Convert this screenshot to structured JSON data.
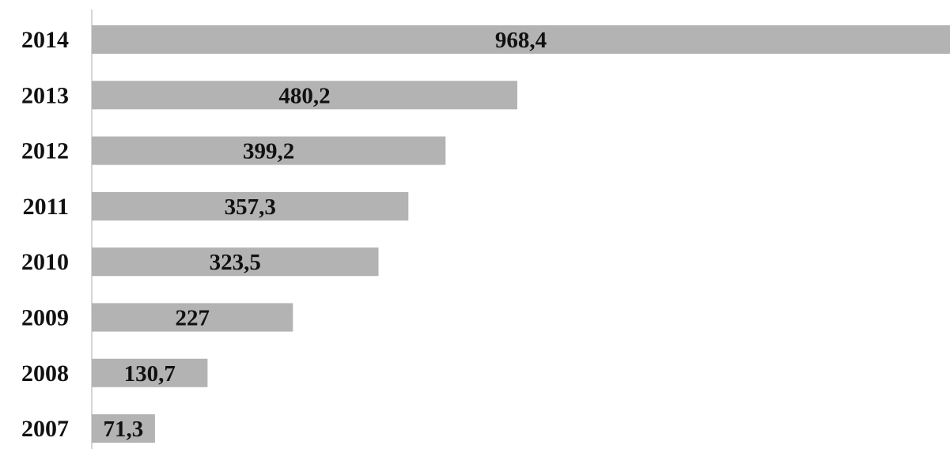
{
  "chart_data": {
    "type": "bar",
    "orientation": "horizontal",
    "categories": [
      "2014",
      "2013",
      "2012",
      "2011",
      "2010",
      "2009",
      "2008",
      "2007"
    ],
    "values": [
      968.4,
      480.2,
      399.2,
      357.3,
      323.5,
      227,
      130.7,
      71.3
    ],
    "value_labels": [
      "968,4",
      "480,2",
      "399,2",
      "357,3",
      "323,5",
      "227",
      "130,7",
      "71,3"
    ],
    "title": "",
    "xlabel": "",
    "ylabel": "",
    "xlim": [
      0,
      968.4
    ],
    "grid": false,
    "legend": "none",
    "bar_color": "#b3b3b3",
    "axis_color": "#c8c8c8"
  }
}
